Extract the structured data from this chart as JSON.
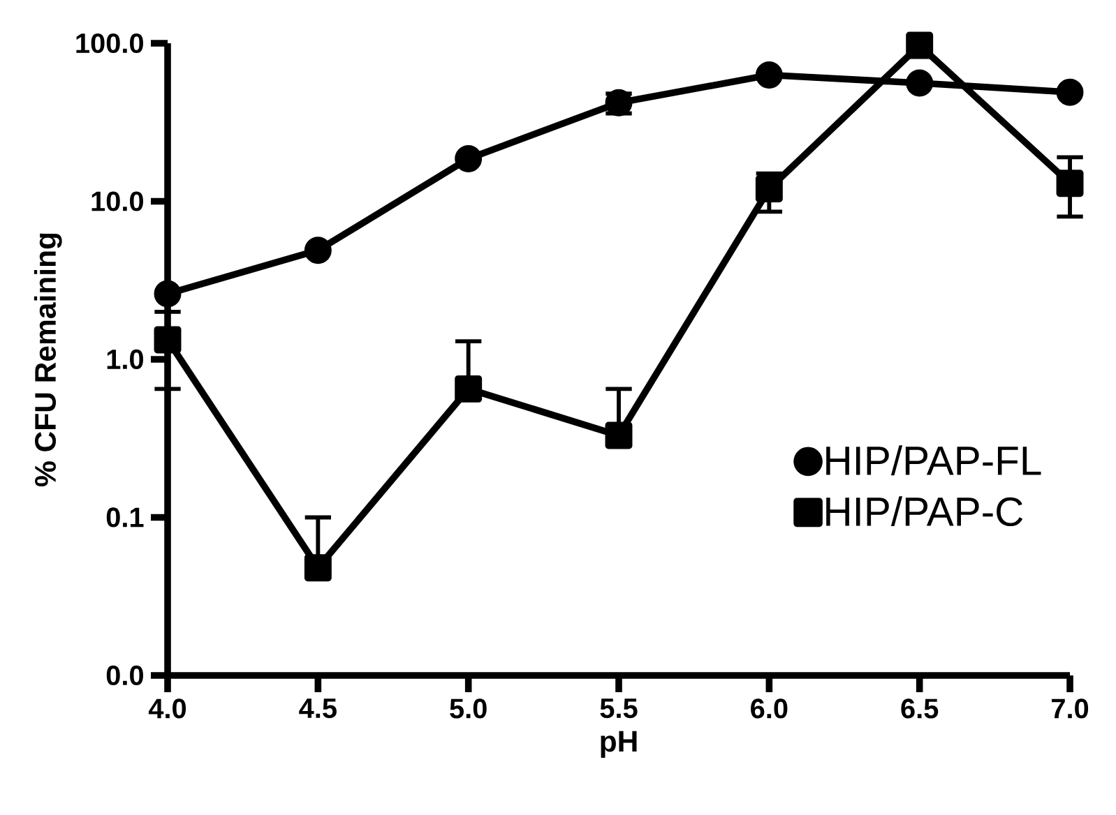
{
  "chart_data": {
    "type": "line",
    "xlabel": "pH",
    "ylabel": "% CFU Remaining",
    "log": "y",
    "legend": "bottom right",
    "line_style": "solid",
    "x": [
      4.0,
      4.5,
      5.0,
      5.5,
      6.0,
      6.5,
      7.0
    ],
    "xlim": [
      4.0,
      7.0
    ],
    "ylim": [
      0.01,
      100
    ],
    "xticks": [
      {
        "value": 4.0,
        "label": "4.0"
      },
      {
        "value": 4.5,
        "label": "4.5"
      },
      {
        "value": 5.0,
        "label": "5.0"
      },
      {
        "value": 5.5,
        "label": "5.5"
      },
      {
        "value": 6.0,
        "label": "6.0"
      },
      {
        "value": 6.5,
        "label": "6.5"
      },
      {
        "value": 7.0,
        "label": "7.0"
      }
    ],
    "yticks": [
      {
        "value": 0.01,
        "label": "0.0"
      },
      {
        "value": 0.1,
        "label": "0.1"
      },
      {
        "value": 1,
        "label": "1.0"
      },
      {
        "value": 10,
        "label": "10.0"
      },
      {
        "value": 100,
        "label": "100.0"
      }
    ],
    "series": [
      {
        "name": "HIP/PAP-FL",
        "color": "#000000",
        "marker": "circle",
        "values": [
          2.6,
          4.9,
          18.6,
          42,
          63,
          56,
          49
        ],
        "errors": [
          null,
          null,
          null,
          [
            36,
            48
          ],
          null,
          null,
          null
        ]
      },
      {
        "name": "HIP/PAP-C",
        "color": "#000000",
        "marker": "square",
        "values": [
          1.33,
          0.048,
          0.65,
          0.33,
          12,
          97,
          13
        ],
        "errors": [
          [
            0.65,
            2.0
          ],
          [
            0.048,
            0.1
          ],
          [
            0.65,
            1.3
          ],
          [
            0.33,
            0.65
          ],
          [
            8.6,
            15
          ],
          null,
          [
            8.0,
            19
          ]
        ]
      }
    ]
  }
}
